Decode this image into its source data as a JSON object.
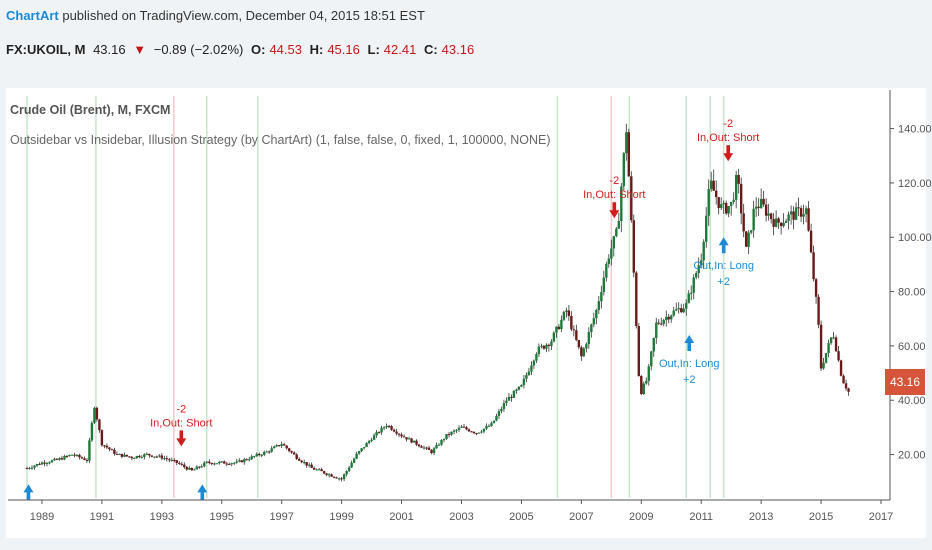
{
  "header": {
    "author": "ChartArt",
    "published_text": " published on TradingView.com, December 04, 2015 18:51 EST"
  },
  "quote": {
    "symbol": "FX:UKOIL, M",
    "last": "43.16",
    "change": "−0.89 (−2.02%)",
    "open_label": "O:",
    "open": "44.53",
    "high_label": "H:",
    "high": "45.16",
    "low_label": "L:",
    "low": "42.41",
    "close_label": "C:",
    "close": "43.16"
  },
  "legend": {
    "title": "Crude Oil (Brent), M, FXCM",
    "study": "Outsidebar vs Insidebar, Illusion Strategy (by ChartArt) (1, false, false, 0, fixed, 1, 100000, NONE)"
  },
  "price_tag": "43.16",
  "colors": {
    "up": "#1f7a3a",
    "down": "#6b1a1a",
    "short": "#d01c1c",
    "long": "#1e8ad6",
    "tag": "#d5543a"
  },
  "chart_data": {
    "type": "candlestick",
    "ylim": [
      4,
      152
    ],
    "xlim": [
      1988.0,
      2017.3
    ],
    "y_ticks": [
      "20.00",
      "40.00",
      "60.00",
      "80.00",
      "100.00",
      "120.00",
      "140.00"
    ],
    "y_tick_values": [
      20,
      40,
      60,
      80,
      100,
      120,
      140
    ],
    "x_ticks": [
      "1989",
      "1991",
      "1993",
      "1995",
      "1997",
      "1999",
      "2001",
      "2003",
      "2005",
      "2007",
      "2009",
      "2011",
      "2013",
      "2015",
      "2017"
    ],
    "x_tick_values": [
      1989,
      1991,
      1993,
      1995,
      1997,
      1999,
      2001,
      2003,
      2005,
      2007,
      2009,
      2011,
      2013,
      2015,
      2017
    ],
    "series": [
      {
        "t": 1988.5,
        "c": 15
      },
      {
        "t": 1989.0,
        "c": 17
      },
      {
        "t": 1989.5,
        "c": 18
      },
      {
        "t": 1990.0,
        "c": 20
      },
      {
        "t": 1990.5,
        "c": 18
      },
      {
        "t": 1990.75,
        "c": 38
      },
      {
        "t": 1991.0,
        "c": 24
      },
      {
        "t": 1991.5,
        "c": 20
      },
      {
        "t": 1992.0,
        "c": 19
      },
      {
        "t": 1992.5,
        "c": 20
      },
      {
        "t": 1993.0,
        "c": 19
      },
      {
        "t": 1993.5,
        "c": 17
      },
      {
        "t": 1994.0,
        "c": 14
      },
      {
        "t": 1994.5,
        "c": 17
      },
      {
        "t": 1995.0,
        "c": 17
      },
      {
        "t": 1995.5,
        "c": 17
      },
      {
        "t": 1996.0,
        "c": 19
      },
      {
        "t": 1996.5,
        "c": 21
      },
      {
        "t": 1997.0,
        "c": 24
      },
      {
        "t": 1997.5,
        "c": 19
      },
      {
        "t": 1998.0,
        "c": 15
      },
      {
        "t": 1998.5,
        "c": 13
      },
      {
        "t": 1999.0,
        "c": 11
      },
      {
        "t": 1999.5,
        "c": 20
      },
      {
        "t": 2000.0,
        "c": 26
      },
      {
        "t": 2000.5,
        "c": 31
      },
      {
        "t": 2001.0,
        "c": 27
      },
      {
        "t": 2001.5,
        "c": 24
      },
      {
        "t": 2002.0,
        "c": 21
      },
      {
        "t": 2002.5,
        "c": 27
      },
      {
        "t": 2003.0,
        "c": 30
      },
      {
        "t": 2003.5,
        "c": 28
      },
      {
        "t": 2004.0,
        "c": 31
      },
      {
        "t": 2004.5,
        "c": 40
      },
      {
        "t": 2005.0,
        "c": 45
      },
      {
        "t": 2005.5,
        "c": 58
      },
      {
        "t": 2006.0,
        "c": 62
      },
      {
        "t": 2006.5,
        "c": 73
      },
      {
        "t": 2007.0,
        "c": 56
      },
      {
        "t": 2007.5,
        "c": 73
      },
      {
        "t": 2007.9,
        "c": 93
      },
      {
        "t": 2008.2,
        "c": 102
      },
      {
        "t": 2008.5,
        "c": 140
      },
      {
        "t": 2008.7,
        "c": 98
      },
      {
        "t": 2008.95,
        "c": 42
      },
      {
        "t": 2009.2,
        "c": 48
      },
      {
        "t": 2009.5,
        "c": 68
      },
      {
        "t": 2010.0,
        "c": 72
      },
      {
        "t": 2010.5,
        "c": 75
      },
      {
        "t": 2011.0,
        "c": 93
      },
      {
        "t": 2011.3,
        "c": 120
      },
      {
        "t": 2011.7,
        "c": 110
      },
      {
        "t": 2012.0,
        "c": 112
      },
      {
        "t": 2012.2,
        "c": 122
      },
      {
        "t": 2012.5,
        "c": 95
      },
      {
        "t": 2012.8,
        "c": 112
      },
      {
        "t": 2013.0,
        "c": 112
      },
      {
        "t": 2013.5,
        "c": 105
      },
      {
        "t": 2014.0,
        "c": 108
      },
      {
        "t": 2014.5,
        "c": 110
      },
      {
        "t": 2014.9,
        "c": 70
      },
      {
        "t": 2015.0,
        "c": 52
      },
      {
        "t": 2015.4,
        "c": 65
      },
      {
        "t": 2015.7,
        "c": 48
      },
      {
        "t": 2015.92,
        "c": 43
      }
    ],
    "signals": [
      {
        "t": 1988.55,
        "y": 9,
        "side": "long",
        "labels": []
      },
      {
        "t": 1993.65,
        "y": 23,
        "side": "short",
        "labels": [
          "-2",
          "In,Out: Short"
        ]
      },
      {
        "t": 1994.35,
        "y": 9,
        "side": "long",
        "labels": []
      },
      {
        "t": 2008.1,
        "y": 107,
        "side": "short",
        "labels": [
          "-2",
          "In,Out: Short"
        ]
      },
      {
        "t": 2010.6,
        "y": 64,
        "side": "long",
        "labels": [
          "Out,In: Long",
          "+2"
        ]
      },
      {
        "t": 2011.75,
        "y": 100,
        "side": "long",
        "labels": [
          "Out,In: Long",
          "+2"
        ]
      },
      {
        "t": 2011.9,
        "y": 128,
        "side": "short",
        "labels": [
          "-2",
          "In,Out: Short"
        ]
      }
    ],
    "signal_lines_short": [
      1993.4,
      2008.0
    ],
    "signal_lines_long": [
      1988.5,
      1990.8,
      1994.5,
      1996.2,
      2006.2,
      2008.6,
      2010.5,
      2011.3,
      2011.75
    ]
  }
}
